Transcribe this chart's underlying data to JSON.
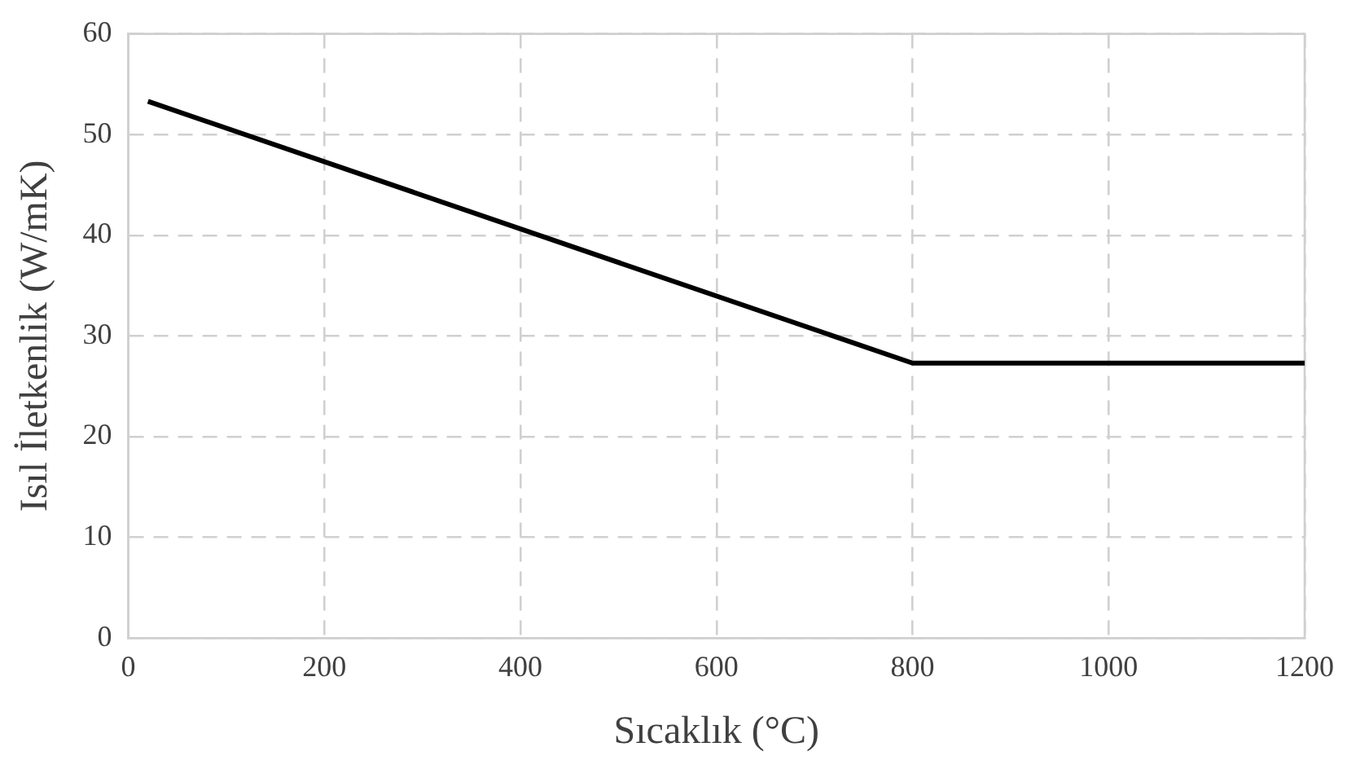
{
  "chart_data": {
    "type": "line",
    "xlabel": "Sıcaklık (°C)",
    "ylabel": "Isıl İletkenlik (W/mK)",
    "x": [
      20,
      800,
      1200
    ],
    "series": [
      {
        "color": "#000000",
        "values": [
          53.3,
          27.3,
          27.3
        ]
      }
    ],
    "xlim": [
      0,
      1200
    ],
    "xticks": [
      0,
      200,
      400,
      600,
      800,
      1000,
      1200
    ],
    "ylim": [
      0,
      60
    ],
    "yticks": [
      0,
      10,
      20,
      30,
      40,
      50,
      60
    ],
    "grid": true,
    "legend": false,
    "marker": "none",
    "line_style": "solid"
  }
}
